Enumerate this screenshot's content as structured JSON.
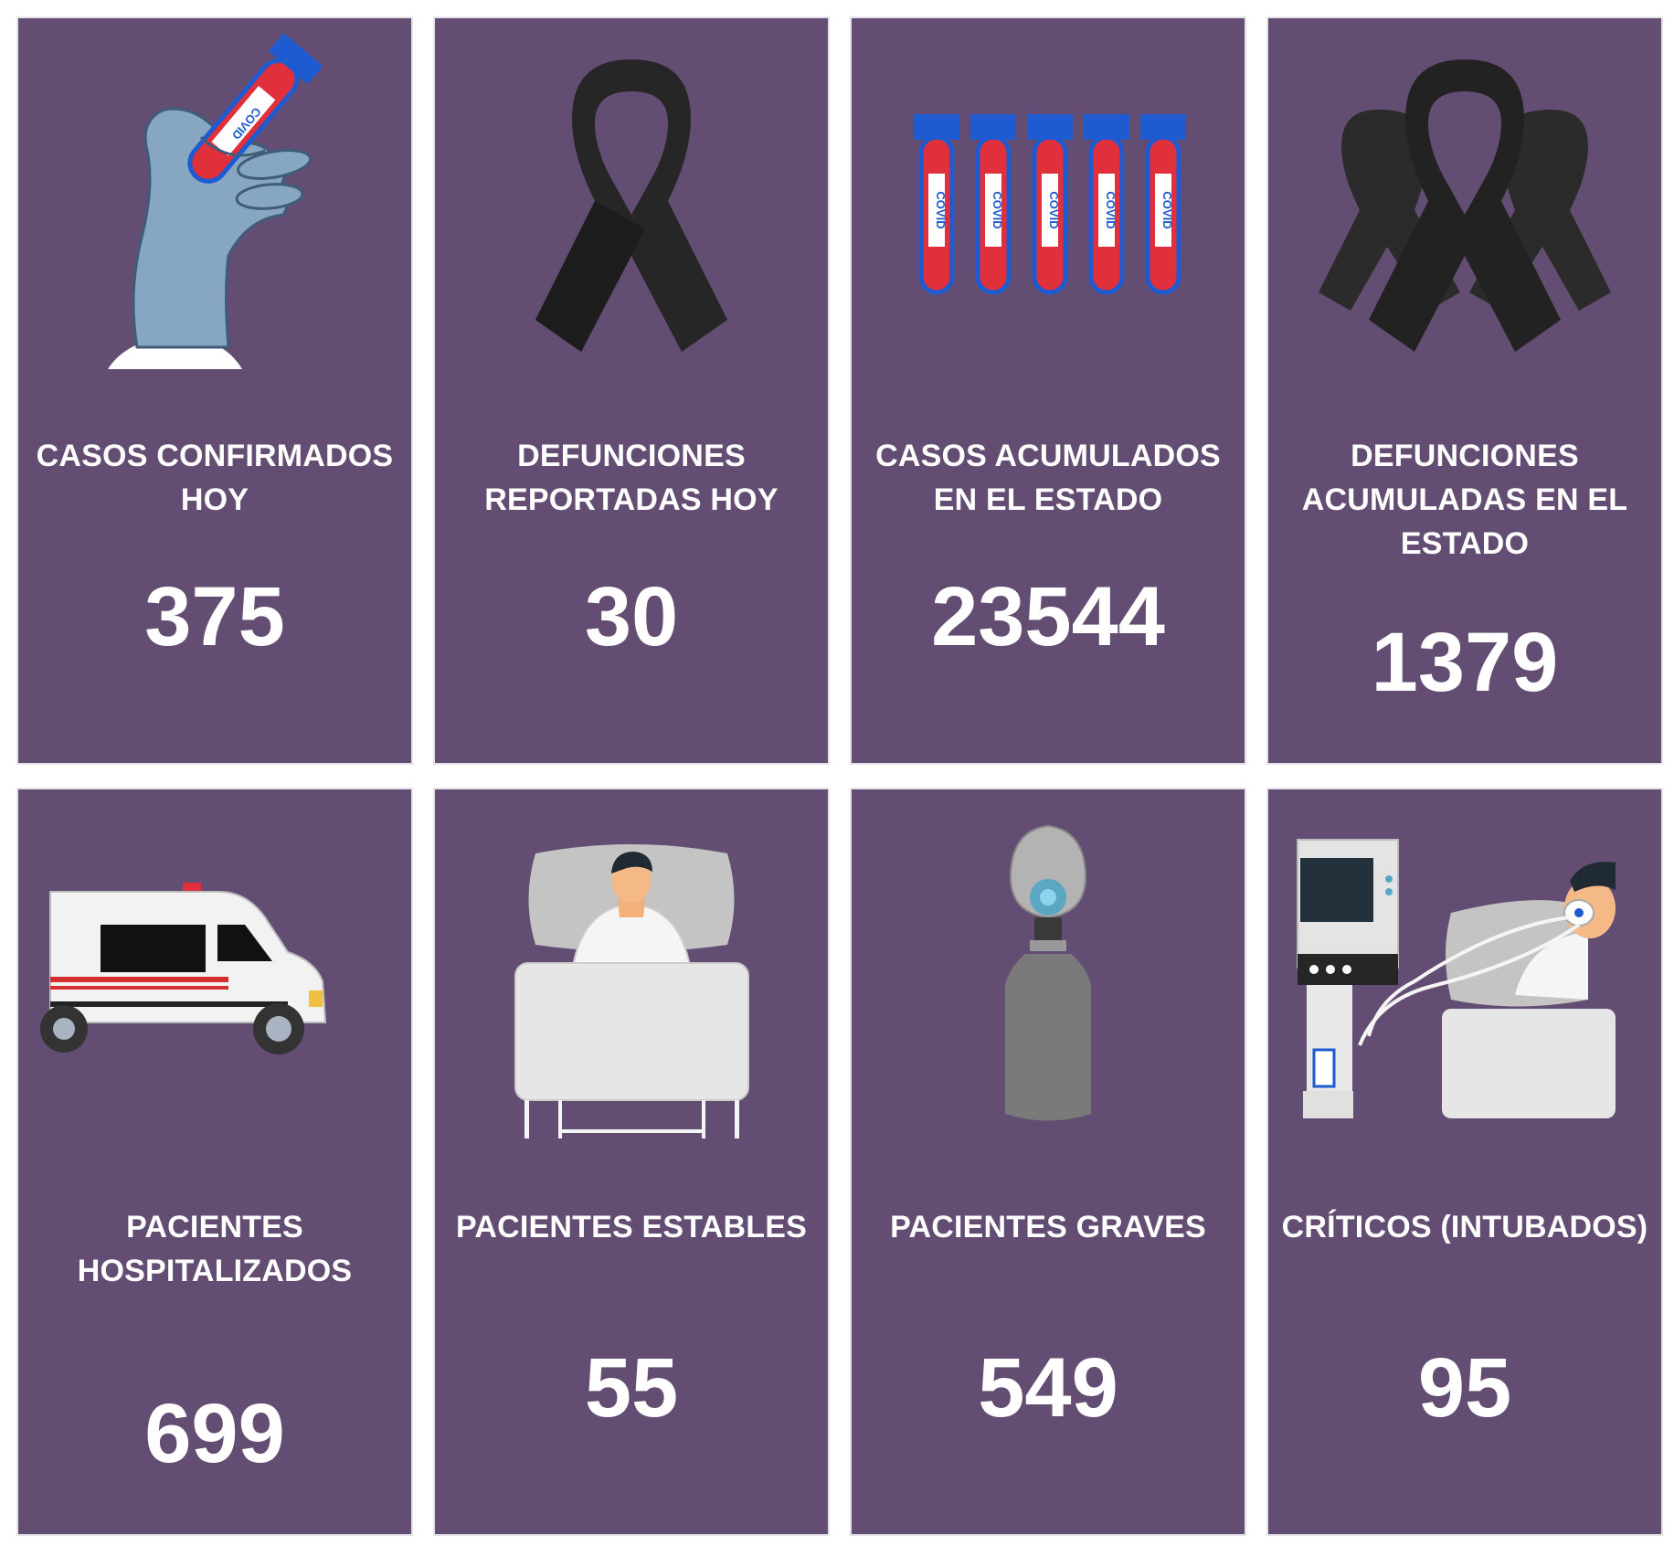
{
  "colors": {
    "card_bg": "#634d72",
    "text": "#ffffff",
    "tube_red": "#e0303c",
    "tube_cap": "#1e5ad0",
    "ribbon": "#2a2a2a"
  },
  "cards": [
    {
      "icon": "gloved-hand-test-tube-icon",
      "tube_text": "COVID",
      "label": "CASOS CONFIRMADOS\nHOY",
      "value": "375"
    },
    {
      "icon": "black-ribbon-icon",
      "label": "DEFUNCIONES\nREPORTADAS HOY",
      "value": "30"
    },
    {
      "icon": "test-tubes-icon",
      "tube_text": "COVID",
      "label": "CASOS ACUMULADOS\nEN EL ESTADO",
      "value": "23544"
    },
    {
      "icon": "three-black-ribbons-icon",
      "label": "DEFUNCIONES\nACUMULADAS EN EL\nESTADO",
      "value": "1379"
    },
    {
      "icon": "ambulance-icon",
      "label": "PACIENTES\nHOSPITALIZADOS",
      "value": "699"
    },
    {
      "icon": "patient-in-bed-icon",
      "label": "PACIENTES ESTABLES",
      "value": "55"
    },
    {
      "icon": "oxygen-tank-icon",
      "label": "PACIENTES GRAVES",
      "value": "549"
    },
    {
      "icon": "ventilator-patient-icon",
      "label": "CRÍTICOS (INTUBADOS)",
      "value": "95"
    }
  ]
}
